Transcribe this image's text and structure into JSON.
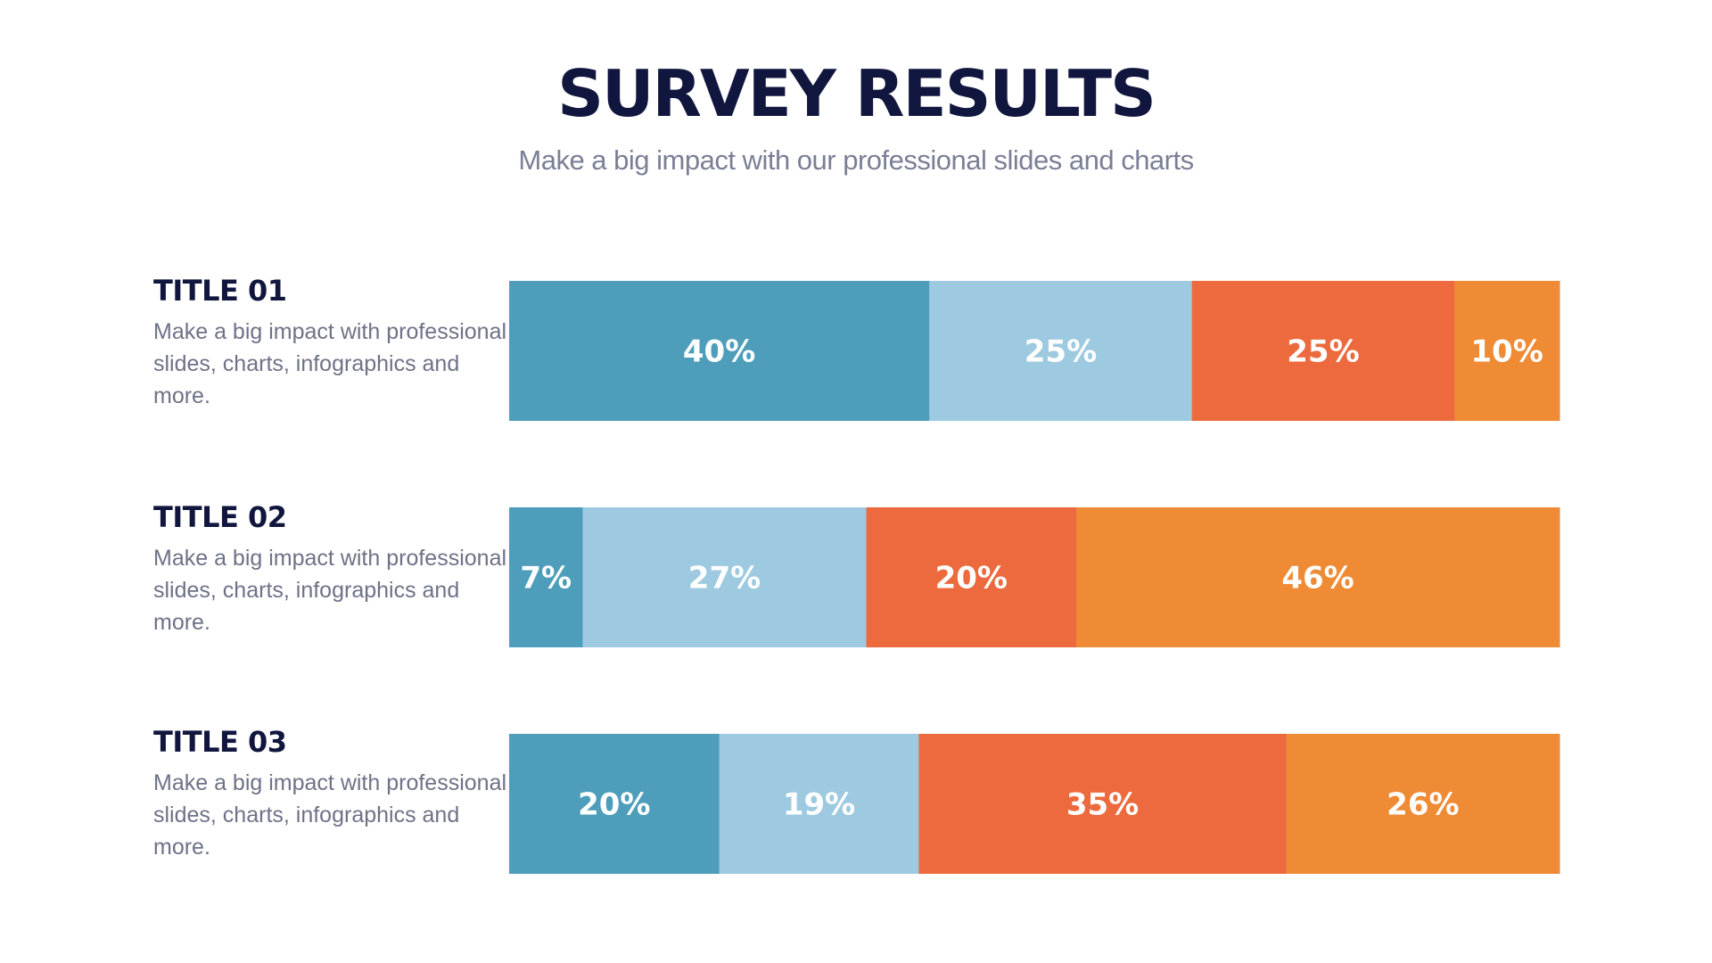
{
  "header": {
    "title": "SURVEY RESULTS",
    "subtitle": "Make a big impact with our professional slides and charts"
  },
  "chart_data": {
    "type": "bar",
    "orientation": "horizontal-stacked-100",
    "colors": [
      "#4e9ebb",
      "#9ecae1",
      "#ec6a3e",
      "#ef8b35"
    ],
    "label_color": "#ffffff",
    "rows": [
      {
        "title": "TITLE 01",
        "description": "Make a big impact with professional slides, charts, infographics and more.",
        "values": [
          40,
          25,
          25,
          10
        ],
        "labels": [
          "40%",
          "25%",
          "25%",
          "10%"
        ]
      },
      {
        "title": "TITLE 02",
        "description": "Make a big impact with professional slides, charts, infographics and more.",
        "values": [
          7,
          27,
          20,
          46
        ],
        "labels": [
          "7%",
          "27%",
          "20%",
          "46%"
        ]
      },
      {
        "title": "TITLE 03",
        "description": "Make a big impact with professional slides, charts, infographics and more.",
        "values": [
          20,
          19,
          35,
          26
        ],
        "labels": [
          "20%",
          "19%",
          "35%",
          "26%"
        ]
      }
    ]
  }
}
